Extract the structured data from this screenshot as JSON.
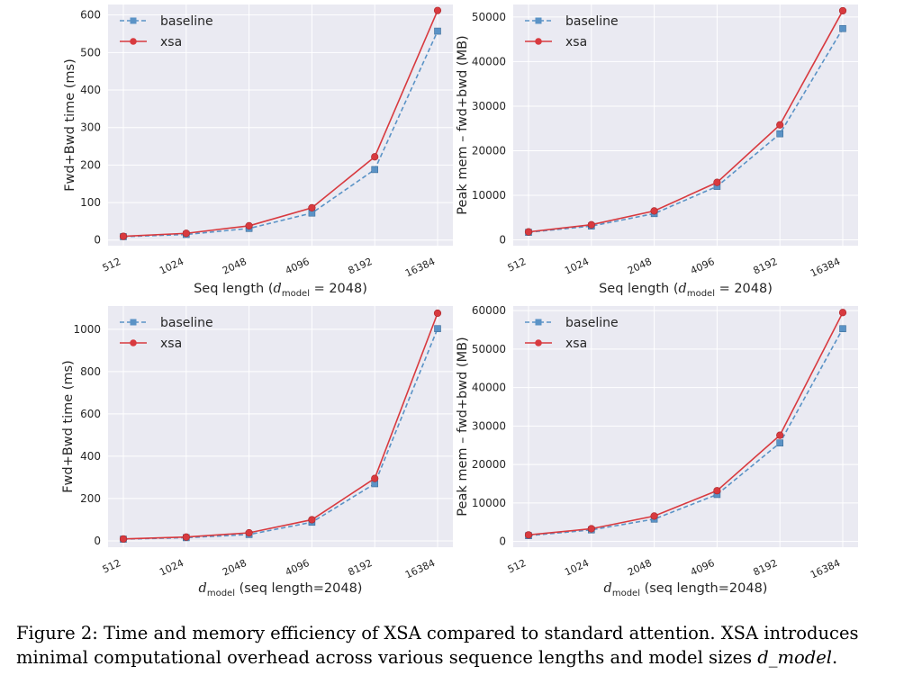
{
  "colors": {
    "baseline": "#5b93c6",
    "xsa": "#d83a3f"
  },
  "chart_data": [
    {
      "type": "line",
      "categories": [
        "512",
        "1024",
        "2048",
        "4096",
        "8192",
        "16384"
      ],
      "series": [
        {
          "name": "baseline",
          "values": [
            9,
            15,
            31,
            72,
            188,
            557
          ],
          "style": "dashed",
          "marker": "square"
        },
        {
          "name": "xsa",
          "values": [
            10,
            18,
            38,
            86,
            222,
            612
          ],
          "style": "solid",
          "marker": "circle"
        }
      ],
      "yticks": [
        0,
        100,
        200,
        300,
        400,
        500,
        600
      ],
      "ylim": [
        -15,
        628
      ],
      "ylabel": "Fwd+Bwd time (ms)",
      "xlabel": "Seq length  (d_model = 2048)",
      "xlabel_pre": "Seq length  (",
      "xlabel_d": "d",
      "xlabel_sub": "model",
      "xlabel_post": " = 2048)",
      "legend": "top-left"
    },
    {
      "type": "line",
      "categories": [
        "512",
        "1024",
        "2048",
        "4096",
        "8192",
        "16384"
      ],
      "series": [
        {
          "name": "baseline",
          "values": [
            1700,
            3100,
            5900,
            12000,
            23800,
            47400
          ],
          "style": "dashed",
          "marker": "square"
        },
        {
          "name": "xsa",
          "values": [
            1800,
            3400,
            6500,
            12900,
            25800,
            51400
          ],
          "style": "solid",
          "marker": "circle"
        }
      ],
      "yticks": [
        0,
        10000,
        20000,
        30000,
        40000,
        50000
      ],
      "ylim": [
        -1300,
        52800
      ],
      "ylabel": "Peak mem – fwd+bwd (MB)",
      "xlabel": "Seq length  (d_model = 2048)",
      "xlabel_pre": "Seq length  (",
      "xlabel_d": "d",
      "xlabel_sub": "model",
      "xlabel_post": " = 2048)",
      "legend": "top-left"
    },
    {
      "type": "line",
      "categories": [
        "512",
        "1024",
        "2048",
        "4096",
        "8192",
        "16384"
      ],
      "series": [
        {
          "name": "baseline",
          "values": [
            8,
            15,
            30,
            88,
            270,
            1003
          ],
          "style": "dashed",
          "marker": "square"
        },
        {
          "name": "xsa",
          "values": [
            9,
            18,
            38,
            100,
            295,
            1076
          ],
          "style": "solid",
          "marker": "circle"
        }
      ],
      "yticks": [
        0,
        200,
        400,
        600,
        800,
        1000
      ],
      "ylim": [
        -30,
        1110
      ],
      "ylabel": "Fwd+Bwd time (ms)",
      "xlabel": "d_model  (seq length=2048)",
      "xlabel_pre": "",
      "xlabel_d": "d",
      "xlabel_sub": "model",
      "xlabel_post": "  (seq length=2048)",
      "legend": "top-left"
    },
    {
      "type": "line",
      "categories": [
        "512",
        "1024",
        "2048",
        "4096",
        "8192",
        "16384"
      ],
      "series": [
        {
          "name": "baseline",
          "values": [
            1500,
            3000,
            5800,
            12200,
            25600,
            55300
          ],
          "style": "dashed",
          "marker": "square"
        },
        {
          "name": "xsa",
          "values": [
            1700,
            3300,
            6600,
            13200,
            27600,
            59500
          ],
          "style": "solid",
          "marker": "circle"
        }
      ],
      "yticks": [
        0,
        10000,
        20000,
        30000,
        40000,
        50000,
        60000
      ],
      "ylim": [
        -1500,
        61200
      ],
      "ylabel": "Peak mem – fwd+bwd (MB)",
      "xlabel": "d_model  (seq length=2048)",
      "xlabel_pre": "",
      "xlabel_d": "d",
      "xlabel_sub": "model",
      "xlabel_post": "  (seq length=2048)",
      "legend": "top-left"
    }
  ],
  "caption": {
    "text": "Figure 2: Time and memory efficiency of XSA compared to standard attention. XSA introduces minimal computational overhead across various sequence lengths and model sizes ",
    "math": "d_model",
    "end": "."
  }
}
